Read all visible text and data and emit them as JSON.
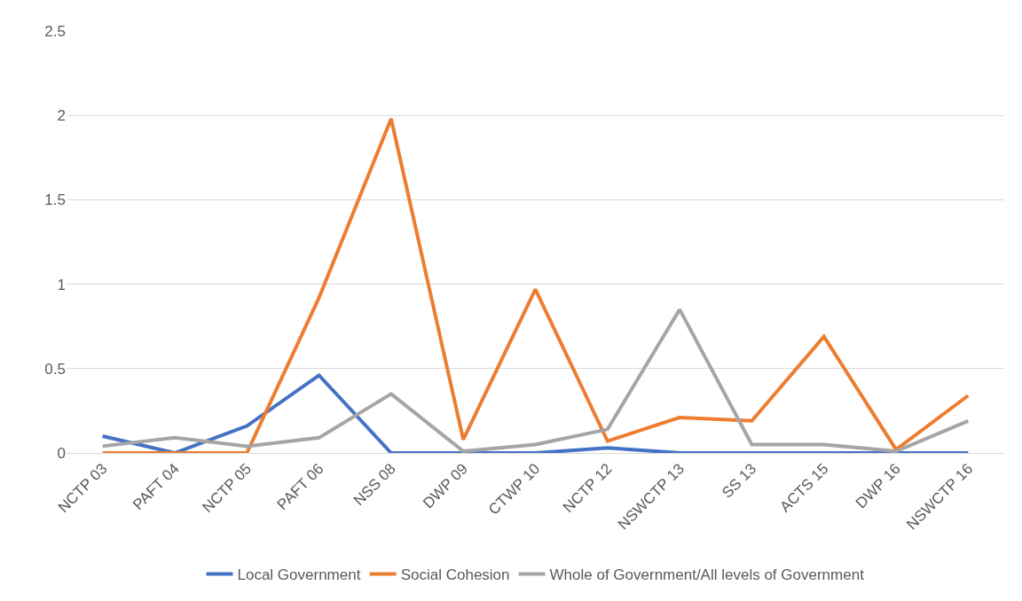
{
  "chart_data": {
    "type": "line",
    "categories": [
      "NCTP 03",
      "PAFT 04",
      "NCTP 05",
      "PAFT 06",
      "NSS 08",
      "DWP 09",
      "CTWP 10",
      "NCTP 12",
      "NSWCTP 13",
      "SS 13",
      "ACTS 15",
      "DWP 16",
      "NSWCTP 16"
    ],
    "series": [
      {
        "name": "Local Government",
        "color": "#4472c4",
        "values": [
          0.1,
          0,
          0.16,
          0.46,
          0,
          0,
          0,
          0.03,
          0,
          0,
          0,
          0,
          0
        ]
      },
      {
        "name": "Social Cohesion",
        "color": "#ed7d31",
        "values": [
          0,
          0,
          0,
          0.92,
          1.98,
          0.08,
          0.97,
          0.07,
          0.21,
          0.19,
          0.69,
          0.02,
          0.34
        ]
      },
      {
        "name": "Whole of Government/All levels of Government",
        "color": "#a5a5a5",
        "values": [
          0.04,
          0.09,
          0.04,
          0.09,
          0.35,
          0.01,
          0.05,
          0.14,
          0.85,
          0.05,
          0.05,
          0.01,
          0.19
        ]
      }
    ],
    "ylim": [
      0,
      2.5
    ],
    "yticks": [
      0,
      0.5,
      1,
      1.5,
      2,
      2.5
    ],
    "grid": "y",
    "legend": "bottom",
    "marker": "none",
    "line_style": "solid"
  }
}
